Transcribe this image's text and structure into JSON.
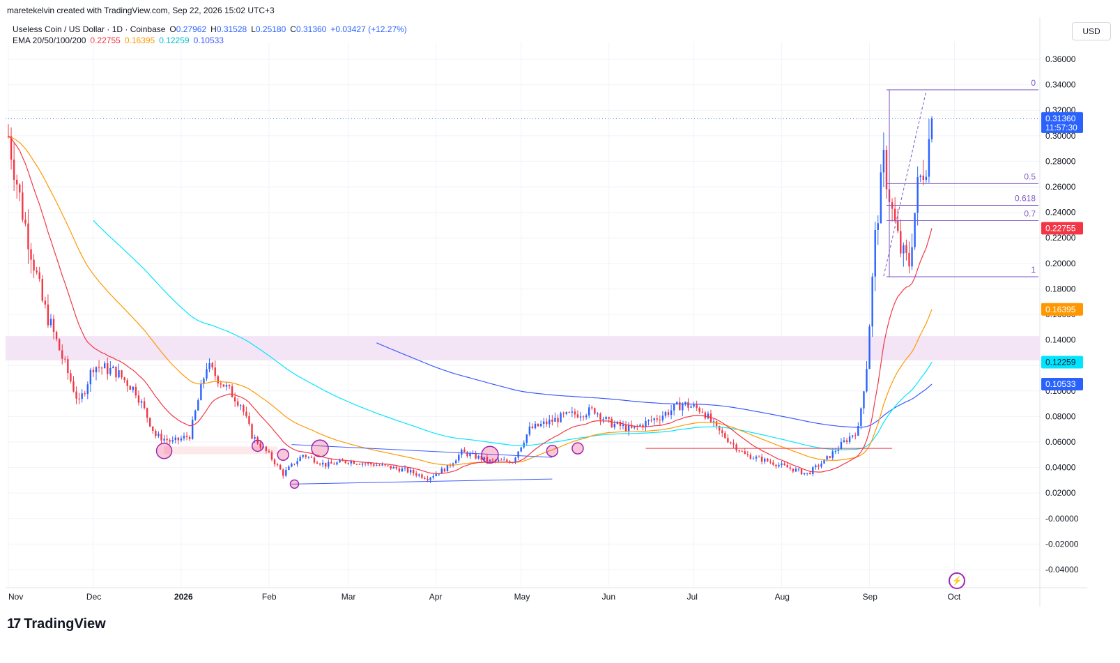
{
  "credit": "maretekelvin created with TradingView.com, Sep 22, 2026 15:02 UTC+3",
  "legend": {
    "symbol": "Useless Coin / US Dollar · 1D · Coinbase",
    "o_label": "O",
    "o": "0.27962",
    "h_label": "H",
    "h": "0.31528",
    "l_label": "L",
    "l": "0.25180",
    "c_label": "C",
    "c": "0.31360",
    "change": "+0.03427 (+12.27%)",
    "ema_label": "EMA 20/50/100/200",
    "ema20": "0.22755",
    "ema50": "0.16395",
    "ema100": "0.12259",
    "ema200": "0.10533"
  },
  "currency_button": "USD",
  "brand": "TradingView",
  "colors": {
    "up": "#2962ff",
    "down": "#f23645",
    "ema20": "#f23645",
    "ema50": "#ff9800",
    "ema100": "#00e5ff",
    "ema200": "#3d5afe",
    "fib": "#7e57c2",
    "zone": "#f3e5f5",
    "support_zone": "#fde8ea"
  },
  "chart_data": {
    "type": "candlestick",
    "title": "Useless Coin / US Dollar · 1D · Coinbase",
    "y_axis": {
      "ticks": [
        "0.36000",
        "0.34000",
        "0.32000",
        "0.30000",
        "0.28000",
        "0.26000",
        "0.24000",
        "0.22000",
        "0.20000",
        "0.18000",
        "0.16000",
        "0.14000",
        "0.12000",
        "0.10000",
        "0.08000",
        "0.06000",
        "0.04000",
        "0.02000",
        "-0.00000",
        "-0.02000",
        "-0.04000"
      ],
      "ylim": [
        -0.045,
        0.375
      ]
    },
    "x_axis": {
      "ticks": [
        "Nov",
        "Dec",
        "2026",
        "Feb",
        "Mar",
        "Apr",
        "May",
        "Jun",
        "Jul",
        "Aug",
        "Sep",
        "Oct"
      ]
    },
    "price_labels": [
      {
        "text": "0.31360",
        "sub": "11:57:30",
        "value": 0.3136,
        "color": "#2962ff"
      },
      {
        "text": "0.22755",
        "value": 0.22755,
        "color": "#f23645"
      },
      {
        "text": "0.16395",
        "value": 0.16395,
        "color": "#ff9800"
      },
      {
        "text": "0.12259",
        "value": 0.12259,
        "color": "#00e5ff"
      },
      {
        "text": "0.10533",
        "value": 0.10533,
        "color": "#2962ff"
      }
    ],
    "fibonacci": [
      {
        "level": "0",
        "price": 0.336
      },
      {
        "level": "0.5",
        "price": 0.2625
      },
      {
        "level": "0.618",
        "price": 0.2455
      },
      {
        "level": "0.7",
        "price": 0.2335
      },
      {
        "level": "1",
        "price": 0.1895
      }
    ],
    "key_anchors": [
      {
        "date": "Nov",
        "price": 0.3
      },
      {
        "date": "Dec",
        "price": 0.12
      },
      {
        "date": "2026",
        "price": 0.065
      },
      {
        "date": "Feb",
        "price": 0.045
      },
      {
        "date": "Mar",
        "price": 0.045
      },
      {
        "date": "Apr",
        "price": 0.032
      },
      {
        "date": "May",
        "price": 0.045
      },
      {
        "date": "Jun",
        "price": 0.085
      },
      {
        "date": "Jul",
        "price": 0.085
      },
      {
        "date": "Aug",
        "price": 0.045
      },
      {
        "date": "Sep",
        "price": 0.22
      },
      {
        "date": "Sep 22",
        "price": 0.3136
      }
    ],
    "ema_last": {
      "ema20": 0.22755,
      "ema50": 0.16395,
      "ema100": 0.12259,
      "ema200": 0.10533
    }
  }
}
